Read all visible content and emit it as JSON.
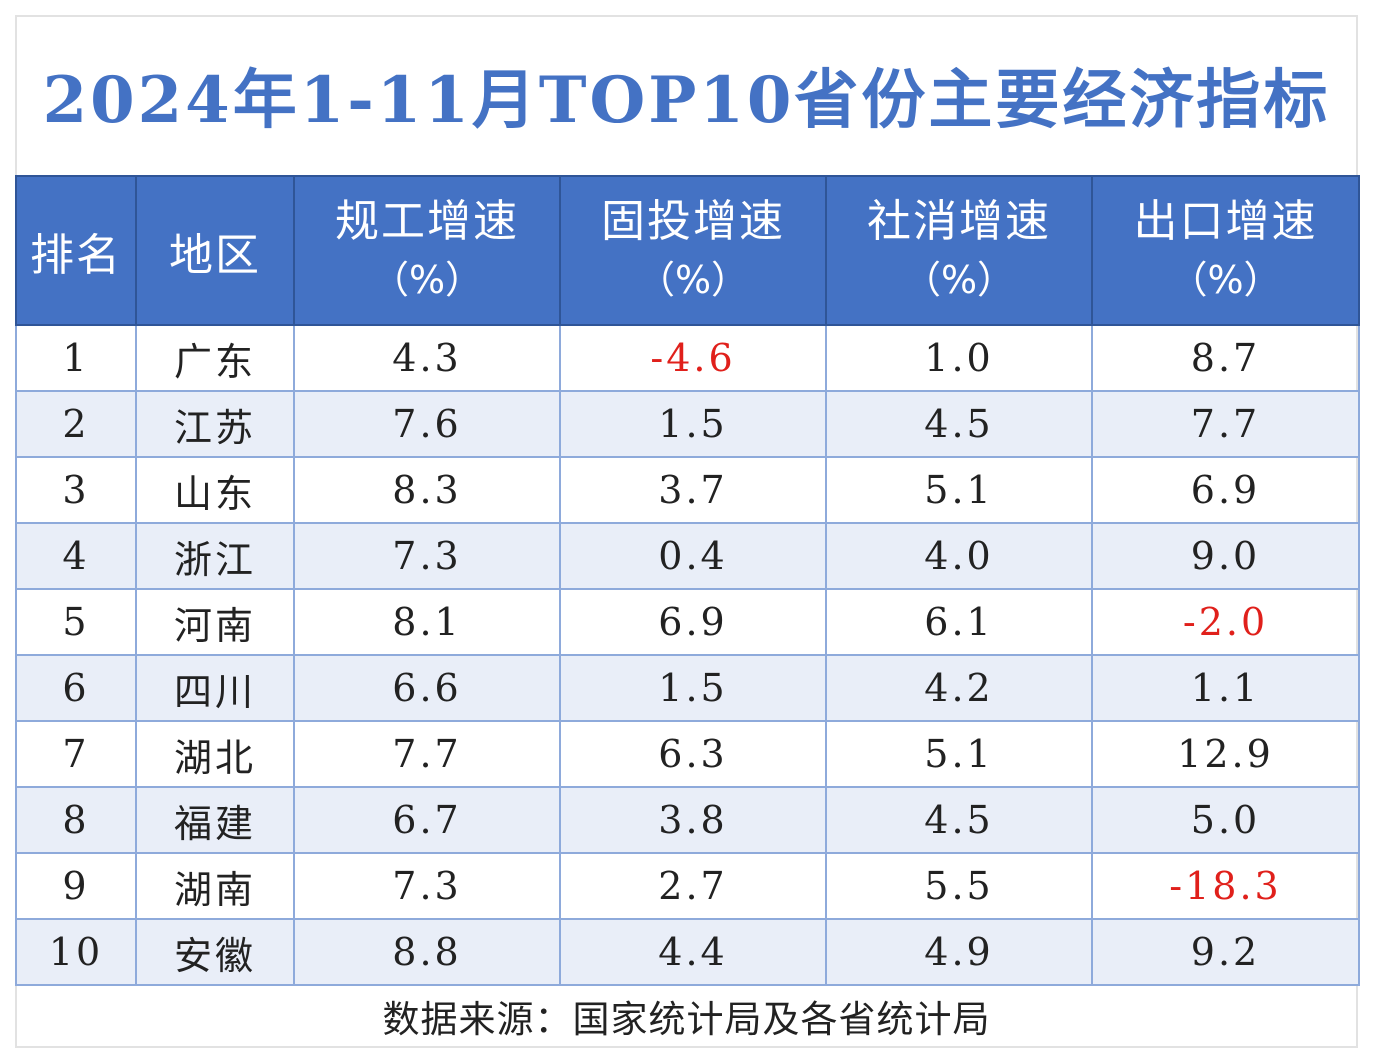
{
  "chart_data": {
    "type": "table",
    "title": "2024年1-11月TOP10省份主要经济指标",
    "columns": [
      {
        "label": "排名",
        "unit": ""
      },
      {
        "label": "地区",
        "unit": ""
      },
      {
        "label": "规工增速",
        "unit": "（%）"
      },
      {
        "label": "固投增速",
        "unit": "（%）"
      },
      {
        "label": "社消增速",
        "unit": "（%）"
      },
      {
        "label": "出口增速",
        "unit": "（%）"
      }
    ],
    "rows": [
      [
        "1",
        "广东",
        "4.3",
        "-4.6",
        "1.0",
        "8.7"
      ],
      [
        "2",
        "江苏",
        "7.6",
        "1.5",
        "4.5",
        "7.7"
      ],
      [
        "3",
        "山东",
        "8.3",
        "3.7",
        "5.1",
        "6.9"
      ],
      [
        "4",
        "浙江",
        "7.3",
        "0.4",
        "4.0",
        "9.0"
      ],
      [
        "5",
        "河南",
        "8.1",
        "6.9",
        "6.1",
        "-2.0"
      ],
      [
        "6",
        "四川",
        "6.6",
        "1.5",
        "4.2",
        "1.1"
      ],
      [
        "7",
        "湖北",
        "7.7",
        "6.3",
        "5.1",
        "12.9"
      ],
      [
        "8",
        "福建",
        "6.7",
        "3.8",
        "4.5",
        "5.0"
      ],
      [
        "9",
        "湖南",
        "7.3",
        "2.7",
        "5.5",
        "-18.3"
      ],
      [
        "10",
        "安徽",
        "8.8",
        "4.4",
        "4.9",
        "9.2"
      ]
    ],
    "source": "数据来源：国家统计局及各省统计局"
  },
  "colors": {
    "title": "#4472c4",
    "header_bg": "#4472c4",
    "header_text": "#ffffff",
    "stripe": "#e9eef8",
    "negative": "#e0201b"
  }
}
